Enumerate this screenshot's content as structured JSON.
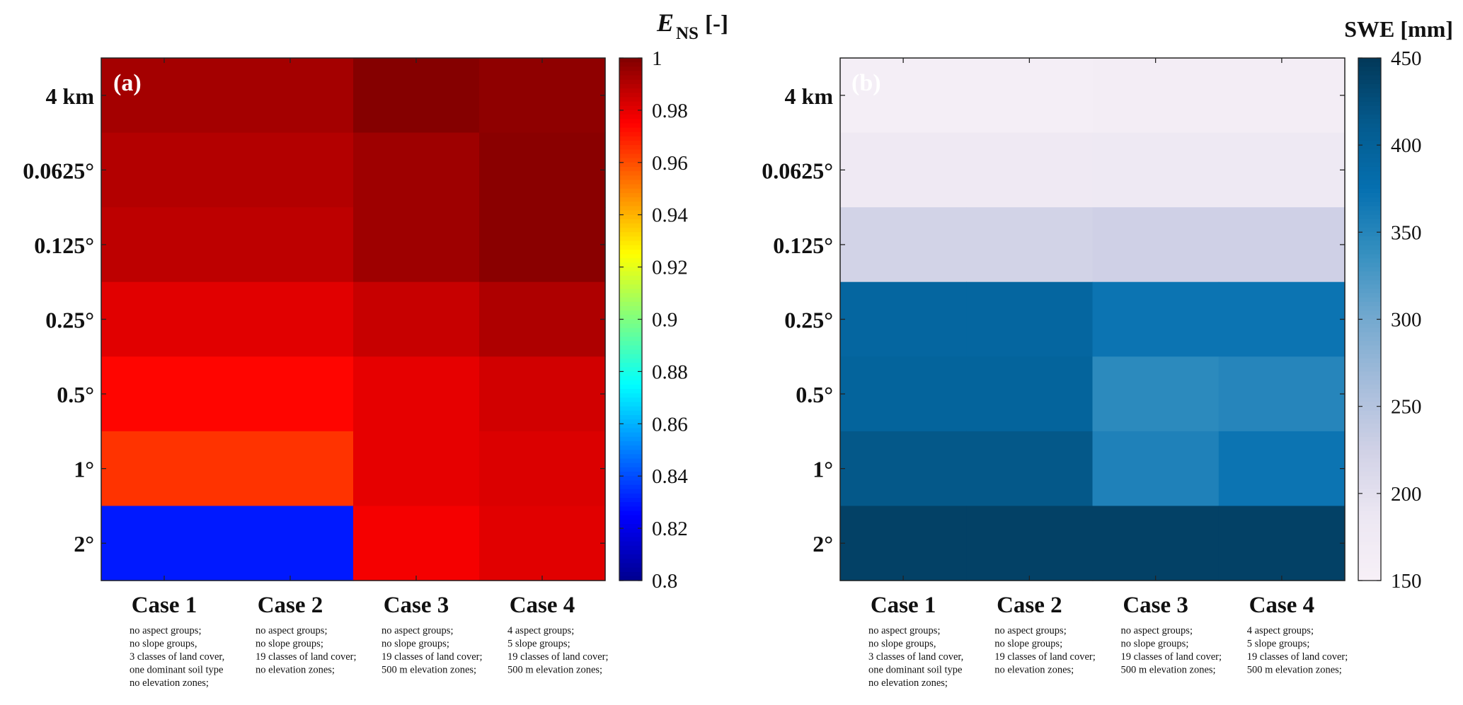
{
  "chart_data": [
    {
      "type": "heatmap",
      "panel_label": "(a)",
      "colorbar_title": "E",
      "colorbar_title_sub": "NS",
      "colorbar_title_unit": "[-]",
      "colormap": "jet",
      "clim": [
        0.8,
        1.0
      ],
      "colorbar_ticks": [
        "0.8",
        "0.82",
        "0.84",
        "0.86",
        "0.88",
        "0.9",
        "0.92",
        "0.94",
        "0.96",
        "0.98",
        "1"
      ],
      "rows": [
        "4 km",
        "0.0625°",
        "0.125°",
        "0.25°",
        "0.5°",
        "1°",
        "2°"
      ],
      "columns": [
        "Case 1",
        "Case 2",
        "Case 3",
        "Case 4"
      ],
      "values": [
        [
          0.993,
          0.993,
          0.999,
          0.997
        ],
        [
          0.99,
          0.99,
          0.994,
          0.998
        ],
        [
          0.988,
          0.988,
          0.994,
          0.998
        ],
        [
          0.981,
          0.981,
          0.986,
          0.991
        ],
        [
          0.974,
          0.974,
          0.98,
          0.984
        ],
        [
          0.965,
          0.965,
          0.98,
          0.982
        ],
        [
          0.83,
          0.83,
          0.977,
          0.981
        ]
      ]
    },
    {
      "type": "heatmap",
      "panel_label": "(b)",
      "colorbar_title": "SWE [mm]",
      "colormap": "PuBu",
      "clim": [
        150,
        450
      ],
      "colorbar_ticks": [
        "150",
        "200",
        "250",
        "300",
        "350",
        "400",
        "450"
      ],
      "rows": [
        "4 km",
        "0.0625°",
        "0.125°",
        "0.25°",
        "0.5°",
        "1°",
        "2°"
      ],
      "columns": [
        "Case 1",
        "Case 2",
        "Case 3",
        "Case 4"
      ],
      "values": [
        [
          160,
          160,
          163,
          164
        ],
        [
          178,
          178,
          180,
          180
        ],
        [
          222,
          222,
          226,
          226
        ],
        [
          392,
          392,
          370,
          370
        ],
        [
          396,
          396,
          345,
          350
        ],
        [
          415,
          415,
          355,
          370
        ],
        [
          440,
          440,
          440,
          440
        ]
      ]
    }
  ],
  "case_descriptions": [
    [
      "no aspect groups;",
      "no slope groups,",
      "3 classes of land cover,",
      "one dominant soil type",
      "no elevation zones;"
    ],
    [
      "no aspect groups;",
      "no slope groups;",
      "19 classes of land cover;",
      "no elevation zones;"
    ],
    [
      "no aspect groups;",
      "no slope groups;",
      "19 classes of land cover;",
      "500 m elevation zones;"
    ],
    [
      "4 aspect groups;",
      "5 slope groups;",
      "19 classes of land cover;",
      "500 m elevation zones;"
    ]
  ]
}
